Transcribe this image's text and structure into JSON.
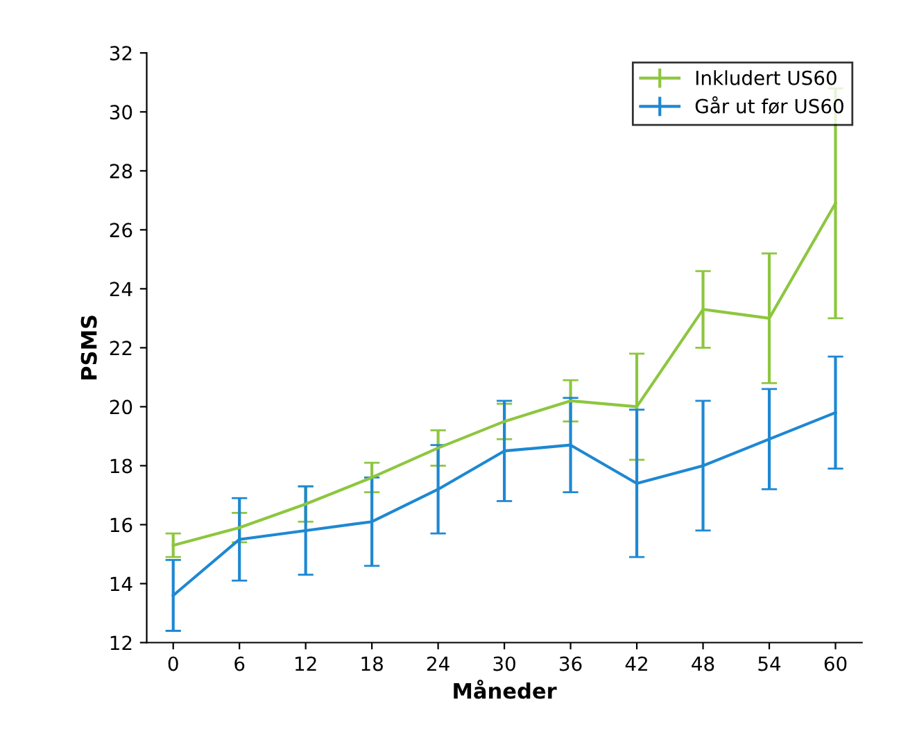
{
  "chart_data": {
    "type": "line",
    "xlabel": "Måneder",
    "ylabel": "PSMS",
    "categories": [
      "0",
      "6",
      "12",
      "18",
      "24",
      "30",
      "36",
      "42",
      "48",
      "54",
      "60"
    ],
    "ylim": [
      12,
      32
    ],
    "yticks": [
      12,
      14,
      16,
      18,
      20,
      22,
      24,
      26,
      28,
      30,
      32
    ],
    "grid": false,
    "legend": "top right",
    "marker": "none",
    "line_style": "solid",
    "series": [
      {
        "name": "Inkludert US60",
        "color": "#8dc63f",
        "values": [
          15.3,
          15.9,
          16.7,
          17.6,
          18.6,
          19.5,
          20.2,
          20.0,
          23.3,
          23.0,
          26.9
        ],
        "errors": [
          0.4,
          0.5,
          0.6,
          0.5,
          0.6,
          0.6,
          0.7,
          1.8,
          1.3,
          2.2,
          3.9
        ]
      },
      {
        "name": "Går ut før US60",
        "color": "#1e88d2",
        "values": [
          13.6,
          15.5,
          15.8,
          16.1,
          17.2,
          18.5,
          18.7,
          17.4,
          18.0,
          18.9,
          19.8
        ],
        "errors": [
          1.2,
          1.4,
          1.5,
          1.5,
          1.5,
          1.7,
          1.6,
          2.5,
          2.2,
          1.7,
          1.9
        ]
      }
    ]
  }
}
